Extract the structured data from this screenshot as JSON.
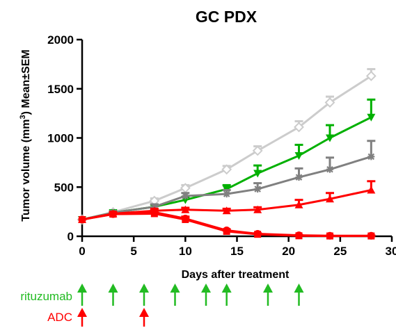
{
  "chart_data": {
    "type": "line",
    "title": "GC PDX",
    "xlabel": "Days after treatment",
    "ylabel_prefix": "Tumor volume (mm",
    "ylabel_sup": "3",
    "ylabel_suffix": ") Mean±SEM",
    "xlim": [
      0,
      30
    ],
    "ylim": [
      0,
      2000
    ],
    "xticks": [
      0,
      5,
      10,
      15,
      20,
      25,
      30
    ],
    "yticks": [
      0,
      500,
      1000,
      1500,
      2000
    ],
    "grid": false,
    "legend": "none",
    "series": [
      {
        "color": "#cccccc",
        "marker": "diamond-open",
        "points": [
          {
            "x": 0,
            "y": 170,
            "err": 0
          },
          {
            "x": 3,
            "y": 245,
            "err": 15
          },
          {
            "x": 7,
            "y": 360,
            "err": 25
          },
          {
            "x": 10,
            "y": 490,
            "err": 30
          },
          {
            "x": 14,
            "y": 680,
            "err": 35
          },
          {
            "x": 17,
            "y": 870,
            "err": 45
          },
          {
            "x": 21,
            "y": 1110,
            "err": 60
          },
          {
            "x": 24,
            "y": 1360,
            "err": 60
          },
          {
            "x": 28,
            "y": 1630,
            "err": 70
          }
        ]
      },
      {
        "color": "#00b000",
        "marker": "triangle-down",
        "points": [
          {
            "x": 0,
            "y": 170,
            "err": 0
          },
          {
            "x": 3,
            "y": 240,
            "err": 15
          },
          {
            "x": 7,
            "y": 300,
            "err": 20
          },
          {
            "x": 10,
            "y": 370,
            "err": 30
          },
          {
            "x": 14,
            "y": 480,
            "err": 40
          },
          {
            "x": 17,
            "y": 640,
            "err": 80
          },
          {
            "x": 21,
            "y": 820,
            "err": 110
          },
          {
            "x": 24,
            "y": 1000,
            "err": 130
          },
          {
            "x": 28,
            "y": 1210,
            "err": 180
          }
        ]
      },
      {
        "color": "#808080",
        "marker": "star",
        "points": [
          {
            "x": 0,
            "y": 170,
            "err": 0
          },
          {
            "x": 3,
            "y": 240,
            "err": 15
          },
          {
            "x": 7,
            "y": 300,
            "err": 25
          },
          {
            "x": 10,
            "y": 410,
            "err": 30
          },
          {
            "x": 14,
            "y": 430,
            "err": 40
          },
          {
            "x": 17,
            "y": 480,
            "err": 60
          },
          {
            "x": 21,
            "y": 600,
            "err": 90
          },
          {
            "x": 24,
            "y": 680,
            "err": 120
          },
          {
            "x": 28,
            "y": 810,
            "err": 160
          }
        ]
      },
      {
        "color": "#ff0000",
        "marker": "triangle-up",
        "points": [
          {
            "x": 0,
            "y": 170,
            "err": 0
          },
          {
            "x": 3,
            "y": 230,
            "err": 15
          },
          {
            "x": 7,
            "y": 260,
            "err": 20
          },
          {
            "x": 10,
            "y": 270,
            "err": 20
          },
          {
            "x": 14,
            "y": 260,
            "err": 20
          },
          {
            "x": 17,
            "y": 270,
            "err": 25
          },
          {
            "x": 21,
            "y": 320,
            "err": 50
          },
          {
            "x": 24,
            "y": 380,
            "err": 60
          },
          {
            "x": 28,
            "y": 470,
            "err": 90
          }
        ]
      },
      {
        "color": "#ff0000",
        "marker": "circle",
        "points": [
          {
            "x": 0,
            "y": 170,
            "err": 0
          },
          {
            "x": 3,
            "y": 225,
            "err": 10
          },
          {
            "x": 7,
            "y": 245,
            "err": 20
          },
          {
            "x": 10,
            "y": 180,
            "err": 20
          },
          {
            "x": 14,
            "y": 60,
            "err": 10
          },
          {
            "x": 17,
            "y": 25,
            "err": 5
          },
          {
            "x": 21,
            "y": 10,
            "err": 3
          },
          {
            "x": 24,
            "y": 5,
            "err": 2
          },
          {
            "x": 28,
            "y": 5,
            "err": 2
          }
        ]
      },
      {
        "color": "#ff0000",
        "marker": "square",
        "points": [
          {
            "x": 0,
            "y": 170,
            "err": 0
          },
          {
            "x": 3,
            "y": 225,
            "err": 10
          },
          {
            "x": 7,
            "y": 230,
            "err": 15
          },
          {
            "x": 10,
            "y": 170,
            "err": 20
          },
          {
            "x": 14,
            "y": 50,
            "err": 10
          },
          {
            "x": 17,
            "y": 20,
            "err": 5
          },
          {
            "x": 21,
            "y": 5,
            "err": 2
          },
          {
            "x": 24,
            "y": 3,
            "err": 2
          },
          {
            "x": 28,
            "y": 3,
            "err": 2
          }
        ]
      }
    ],
    "annotations": [
      {
        "label": "rituzumab",
        "color": "#22bb22",
        "days": [
          0,
          3,
          6,
          9,
          12,
          14,
          18,
          21
        ]
      },
      {
        "label": "ADC",
        "color": "#ff0000",
        "days": [
          0,
          6
        ]
      }
    ]
  }
}
